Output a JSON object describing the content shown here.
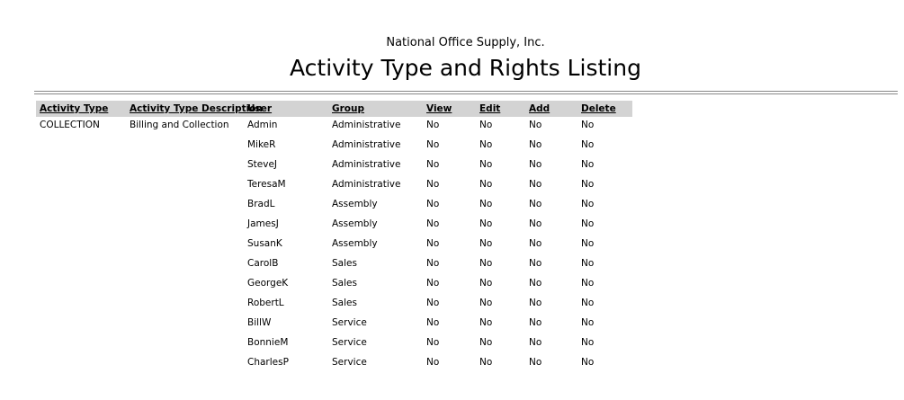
{
  "header": {
    "company": "National Office Supply, Inc.",
    "title": "Activity Type and Rights Listing"
  },
  "table": {
    "columns": [
      "Activity Type",
      "Activity Type Description",
      "User",
      "Group",
      "View",
      "Edit",
      "Add",
      "Delete"
    ],
    "activity_type": "COLLECTION",
    "description": "Billing and Collection",
    "rows": [
      [
        "Admin",
        "Administrative",
        "No",
        "No",
        "No",
        "No"
      ],
      [
        "MikeR",
        "Administrative",
        "No",
        "No",
        "No",
        "No"
      ],
      [
        "SteveJ",
        "Administrative",
        "No",
        "No",
        "No",
        "No"
      ],
      [
        "TeresaM",
        "Administrative",
        "No",
        "No",
        "No",
        "No"
      ],
      [
        "BradL",
        "Assembly",
        "No",
        "No",
        "No",
        "No"
      ],
      [
        "JamesJ",
        "Assembly",
        "No",
        "No",
        "No",
        "No"
      ],
      [
        "SusanK",
        "Assembly",
        "No",
        "No",
        "No",
        "No"
      ],
      [
        "CarolB",
        "Sales",
        "No",
        "No",
        "No",
        "No"
      ],
      [
        "GeorgeK",
        "Sales",
        "No",
        "No",
        "No",
        "No"
      ],
      [
        "RobertL",
        "Sales",
        "No",
        "No",
        "No",
        "No"
      ],
      [
        "BillW",
        "Service",
        "No",
        "No",
        "No",
        "No"
      ],
      [
        "BonnieM",
        "Service",
        "No",
        "No",
        "No",
        "No"
      ],
      [
        "CharlesP",
        "Service",
        "No",
        "No",
        "No",
        "No"
      ]
    ]
  }
}
